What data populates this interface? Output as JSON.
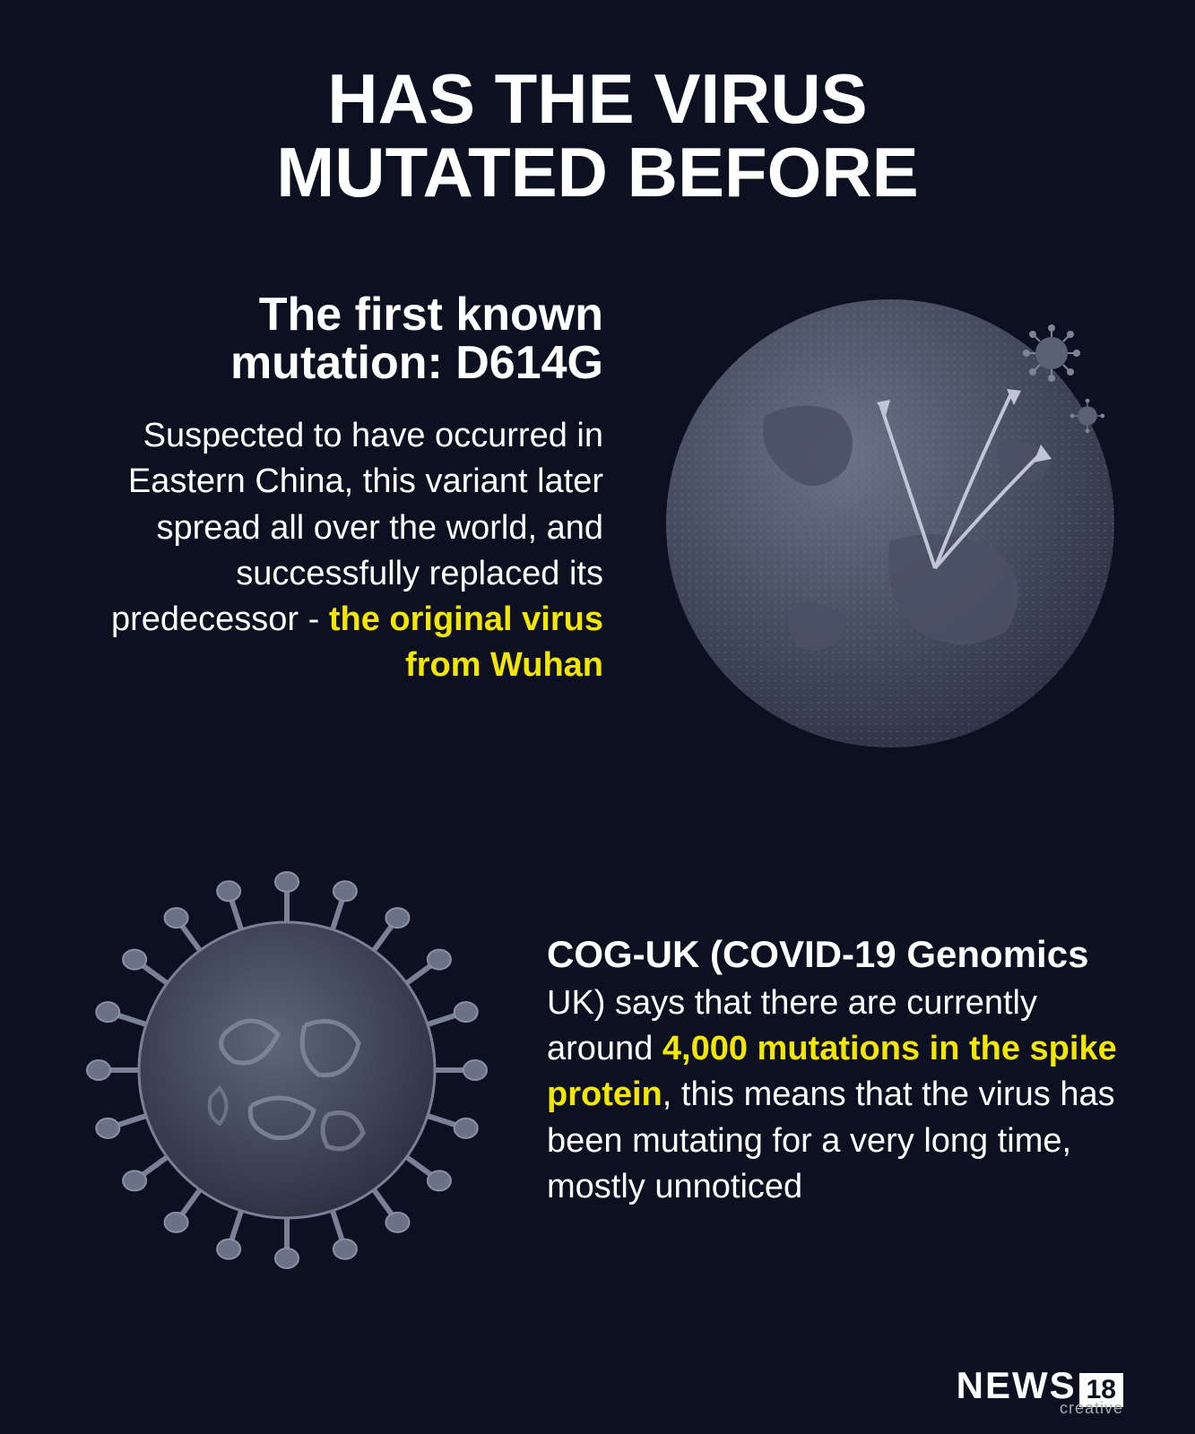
{
  "colors": {
    "background": "#0d1021",
    "text": "#ffffff",
    "highlight": "#f3e600",
    "globe_fill": "#5a6275",
    "globe_dot": "#7a8195",
    "virus_fill": "#3d4356",
    "virus_stroke": "#6d7388"
  },
  "header": {
    "title_line1": "HAS THE VIRUS",
    "title_line2": "MUTATED BEFORE"
  },
  "section1": {
    "title": "The first known mutation: D614G",
    "body_pre": "Suspected to have occurred in Eastern China, this variant later spread all over the world, and successfully replaced its predecessor - ",
    "body_highlight": "the original virus from Wuhan"
  },
  "section2": {
    "lead_bold": "COG-UK (COVID-19 Genomics",
    "lead_post": " UK) says that there are currently around ",
    "highlight": "4,000 mutations in the spike protein",
    "tail": ", this means that the virus has been mutating for a very long time, mostly unnoticed"
  },
  "logo": {
    "brand": "NEWS",
    "number": "18",
    "sub": "creative"
  },
  "typography": {
    "title_fontsize": 78,
    "section_title_fontsize": 52,
    "body_fontsize": 38,
    "lead_fontsize": 42,
    "logo_fontsize": 42
  }
}
